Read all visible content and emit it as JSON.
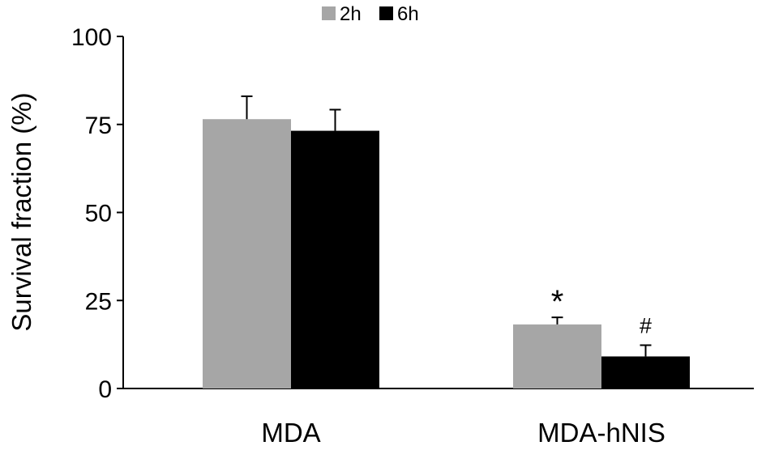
{
  "chart_data": {
    "type": "bar",
    "title": "",
    "xlabel": "",
    "ylabel": "Survival fraction (%)",
    "categories": [
      "MDA",
      "MDA-hNIS"
    ],
    "series": [
      {
        "name": "2h",
        "color": "#a6a6a6",
        "values": [
          76.5,
          18.2
        ],
        "errors": [
          6.5,
          2.0
        ]
      },
      {
        "name": "6h",
        "color": "#000000",
        "values": [
          73.2,
          9.1
        ],
        "errors": [
          6.0,
          3.2
        ]
      }
    ],
    "ylim": [
      0,
      100
    ],
    "yticks": [
      0,
      25,
      50,
      75,
      100
    ],
    "grid": false,
    "legend_position": "top-center",
    "annotations": [
      {
        "text": "*",
        "category": "MDA-hNIS",
        "series": "2h"
      },
      {
        "text": "#",
        "category": "MDA-hNIS",
        "series": "6h"
      }
    ]
  }
}
